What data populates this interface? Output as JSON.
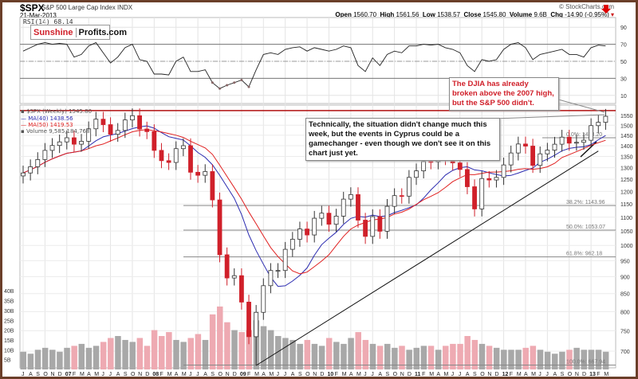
{
  "header": {
    "symbol": "$SPX",
    "name": "S&P 500 Large Cap Index INDX",
    "date": "21-Mar-2013",
    "rsi_label": "RSI(14) 68.14",
    "copyright": "© StockCharts.com",
    "open_label": "Open",
    "open": "1560.70",
    "high_label": "High",
    "high": "1561.56",
    "low_label": "Low",
    "low": "1538.57",
    "close_label": "Close",
    "close": "1545.80",
    "volume_label": "Volume",
    "volume": "9.6B",
    "chg_label": "Chg",
    "chg": "-14.90 (-0.95%)"
  },
  "logo": {
    "part1": "Sunshine",
    "part2": "Profits.com"
  },
  "legend": {
    "price": "$SPX (Weekly) 1545.80",
    "ma40": "MA(40) 1438.56",
    "ma50": "MA(50) 1419.53",
    "volume": "Volume 9,585,184,768"
  },
  "annotations": {
    "red": "The DJIA has already broken above the 2007 high, but the S&P 500 didn't.",
    "black": "Technically, the situation didn't change much this week, but the events in Cyprus could be a gamechanger - even though we don't see it on this chart just yet."
  },
  "colors": {
    "up": "#333333",
    "down": "#d0202a",
    "ma40": "#2b2bb0",
    "ma50": "#e02020",
    "resistance": "#b01010",
    "vol_up": "#a8a8a8",
    "vol_down": "#eeaab2",
    "frame": "#6b3f2a"
  },
  "chart_data": [
    {
      "type": "line",
      "title": "RSI(14)",
      "ylim": [
        0,
        100
      ],
      "yticks": [
        90,
        70,
        50,
        30,
        10
      ],
      "reference_lines": [
        70,
        50,
        30
      ],
      "x": "monthly from Jul 2006 to Mar 2013",
      "values": [
        62,
        66,
        70,
        72,
        70,
        71,
        70,
        55,
        58,
        68,
        72,
        60,
        48,
        55,
        66,
        70,
        52,
        50,
        35,
        35,
        34,
        50,
        55,
        38,
        38,
        40,
        25,
        18,
        22,
        25,
        28,
        20,
        40,
        58,
        60,
        58,
        64,
        66,
        67,
        62,
        66,
        64,
        62,
        64,
        68,
        66,
        45,
        38,
        54,
        45,
        58,
        62,
        60,
        68,
        68,
        70,
        69,
        70,
        66,
        64,
        60,
        45,
        38,
        52,
        50,
        52,
        64,
        70,
        72,
        66,
        52,
        58,
        60,
        62,
        64,
        58,
        58,
        55,
        66,
        69,
        68
      ]
    },
    {
      "type": "candlestick",
      "title": "$SPX (Weekly)",
      "ylabel": "Price",
      "yscale": "log",
      "ylim": [
        650,
        1600
      ],
      "yticks": [
        1550,
        1500,
        1450,
        1400,
        1350,
        1300,
        1250,
        1200,
        1150,
        1100,
        1050,
        1000,
        950,
        900,
        850,
        800,
        750,
        700
      ],
      "month_labels": [
        "J",
        "A",
        "S",
        "O",
        "N",
        "D",
        "07",
        "F",
        "M",
        "A",
        "M",
        "J",
        "J",
        "A",
        "S",
        "O",
        "N",
        "D",
        "08",
        "F",
        "M",
        "A",
        "M",
        "J",
        "J",
        "A",
        "S",
        "O",
        "N",
        "D",
        "09",
        "F",
        "M",
        "A",
        "M",
        "J",
        "J",
        "A",
        "S",
        "O",
        "N",
        "D",
        "10",
        "F",
        "M",
        "A",
        "M",
        "J",
        "J",
        "A",
        "S",
        "O",
        "N",
        "D",
        "11",
        "F",
        "M",
        "A",
        "M",
        "J",
        "J",
        "A",
        "S",
        "O",
        "N",
        "D",
        "12",
        "F",
        "M",
        "A",
        "M",
        "J",
        "J",
        "A",
        "S",
        "O",
        "N",
        "D",
        "13",
        "F",
        "M"
      ],
      "closes": [
        1277,
        1304,
        1336,
        1378,
        1401,
        1418,
        1438,
        1407,
        1421,
        1482,
        1531,
        1503,
        1455,
        1474,
        1527,
        1549,
        1481,
        1468,
        1378,
        1331,
        1323,
        1386,
        1400,
        1280,
        1267,
        1283,
        1166,
        969,
        896,
        903,
        826,
        735,
        798,
        873,
        919,
        919,
        987,
        1021,
        1057,
        1036,
        1096,
        1115,
        1074,
        1104,
        1169,
        1187,
        1089,
        1031,
        1102,
        1049,
        1141,
        1183,
        1181,
        1258,
        1286,
        1327,
        1326,
        1364,
        1345,
        1321,
        1292,
        1219,
        1131,
        1253,
        1247,
        1258,
        1312,
        1366,
        1408,
        1398,
        1310,
        1362,
        1379,
        1407,
        1441,
        1412,
        1416,
        1426,
        1498,
        1515,
        1546
      ],
      "ma_windows": {
        "ma40": 9,
        "ma50": 12
      },
      "resistance": 1576,
      "fibonacci": [
        {
          "label": "0.0%: 1438.20",
          "value": 1438.2
        },
        {
          "label": "38.2%: 1143.96",
          "value": 1143.96
        },
        {
          "label": "50.0%: 1053.07",
          "value": 1053.07
        },
        {
          "label": "61.8%: 962.18",
          "value": 962.18
        },
        {
          "label": "100.0%: 667.94",
          "value": 667.94
        }
      ],
      "trendline": {
        "from": {
          "month": 32,
          "price": 667
        },
        "to": {
          "month": 79,
          "price": 1375
        }
      }
    },
    {
      "type": "bar",
      "title": "Volume",
      "yticks_labels": [
        "40B",
        "35B",
        "30B",
        "25B",
        "20B",
        "15B",
        "10B",
        "5B"
      ],
      "yticks": [
        40,
        35,
        30,
        25,
        20,
        15,
        10,
        5
      ],
      "values_billions": [
        9,
        8,
        10,
        11,
        10,
        9,
        11,
        12,
        13,
        11,
        12,
        14,
        16,
        17,
        15,
        14,
        16,
        12,
        20,
        17,
        19,
        15,
        14,
        16,
        18,
        15,
        28,
        32,
        24,
        20,
        19,
        20,
        25,
        22,
        20,
        17,
        16,
        15,
        13,
        15,
        13,
        12,
        16,
        14,
        13,
        16,
        19,
        15,
        13,
        12,
        13,
        11,
        12,
        10,
        11,
        12,
        12,
        10,
        12,
        13,
        13,
        17,
        15,
        13,
        12,
        11,
        10,
        10,
        10,
        11,
        12,
        10,
        9,
        8,
        9,
        10,
        11,
        10,
        10,
        10,
        9
      ]
    }
  ]
}
